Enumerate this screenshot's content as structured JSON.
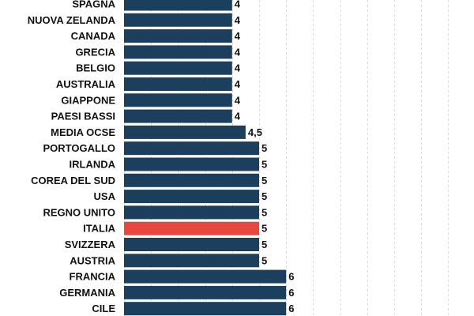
{
  "chart_data": {
    "type": "bar",
    "orientation": "horizontal",
    "title": "",
    "xlabel": "",
    "ylabel": "",
    "xlim": [
      0,
      14
    ],
    "grid": true,
    "categories": [
      "SPAGNA",
      "NUOVA ZELANDA",
      "CANADA",
      "GRECIA",
      "BELGIO",
      "AUSTRALIA",
      "GIAPPONE",
      "PAESI BASSI",
      "MEDIA OCSE",
      "PORTOGALLO",
      "IRLANDA",
      "COREA DEL SUD",
      "USA",
      "REGNO UNITO",
      "ITALIA",
      "SVIZZERA",
      "AUSTRIA",
      "FRANCIA",
      "GERMANIA",
      "CILE"
    ],
    "values": [
      4,
      4,
      4,
      4,
      4,
      4,
      4,
      4,
      4.5,
      5,
      5,
      5,
      5,
      5,
      5,
      5,
      5,
      6,
      6,
      6
    ],
    "value_labels": [
      "4",
      "4",
      "4",
      "4",
      "4",
      "4",
      "4",
      "4",
      "4,5",
      "5",
      "5",
      "5",
      "5",
      "5",
      "5",
      "5",
      "5",
      "6",
      "6",
      "6"
    ],
    "highlight_category": "ITALIA",
    "colors": {
      "bar": "#1d3f5e",
      "highlight": "#e8473f",
      "text": "#111111",
      "grid": "#dcdcdc"
    }
  }
}
